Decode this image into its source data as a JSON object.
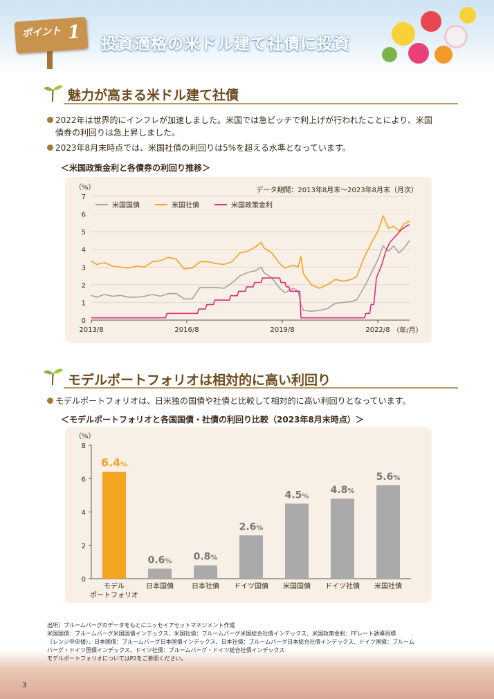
{
  "header": {
    "point_label": "ポイント",
    "point_number": "1",
    "title": "投資適格の米ドル建て社債に投資"
  },
  "section1": {
    "title": "魅力が高まる米ドル建て社債",
    "bullets": [
      "2022年は世界的にインフレが加速しました。米国では急ピッチで利上げが行われたことにより、米国",
      "債券の利回りは急上昇しました。",
      "2023年8月末時点では、米国社債の利回りは5%を超える水準となっています。"
    ],
    "chart_caption": "＜米国政策金利と各債券の利回り推移＞"
  },
  "section2": {
    "title": "モデルポートフォリオは相対的に高い利回り",
    "bullets": [
      "モデルポートフォリオは、日米独の国債や社債と比較して相対的に高い利回りとなっています。"
    ],
    "chart_caption": "＜モデルポートフォリオと各国国債・社債の利回り比較（2023年8月末時点）＞"
  },
  "footnote": [
    "出所）ブルームバーグのデータをもとにニッセイアセットマネジメント作成",
    "米国国債：ブルームバーグ米国国債インデックス、米国社債：ブルームバーグ米国総合社債インデックス、米国政策金利：FFレート誘導目標",
    "（レンジ中央値）、日本国債：ブルームバーグ日本国債インデックス、日本社債：ブルームバーグ日本総合社債インデックス、ドイツ国債：ブルーム",
    "バーグ・ドイツ国債インデックス、ドイツ社債：ブルームバーグ・ドイツ総合社債インデックス",
    "モデルポートフォリオについてはP2をご参照ください。"
  ],
  "page_number": "3",
  "chart_data": [
    {
      "type": "line",
      "unit_label": "（%）",
      "period_note": "データ期間：2013年8月末～2023年8月末（月次）",
      "x_tick_labels": [
        "2013/8",
        "2016/8",
        "2019/8",
        "2022/8"
      ],
      "x_unit": "（年/月）",
      "ylim": [
        0,
        7
      ],
      "y_ticks": [
        "0",
        "1",
        "2",
        "3",
        "4",
        "5",
        "6",
        "7"
      ],
      "grid": true,
      "legend_position": "top-left",
      "x_start": 2013.583,
      "x_end": 2023.583,
      "series": [
        {
          "name": "米国国債",
          "color": "#a3a3a3",
          "points": [
            [
              2013.58,
              1.4
            ],
            [
              2013.75,
              1.3
            ],
            [
              2014.0,
              1.45
            ],
            [
              2014.25,
              1.35
            ],
            [
              2014.5,
              1.4
            ],
            [
              2014.75,
              1.3
            ],
            [
              2015.0,
              1.3
            ],
            [
              2015.25,
              1.35
            ],
            [
              2015.5,
              1.45
            ],
            [
              2015.75,
              1.35
            ],
            [
              2016.0,
              1.5
            ],
            [
              2016.25,
              1.5
            ],
            [
              2016.5,
              1.2
            ],
            [
              2016.75,
              1.2
            ],
            [
              2017.0,
              1.85
            ],
            [
              2017.25,
              1.85
            ],
            [
              2017.5,
              1.85
            ],
            [
              2017.75,
              1.8
            ],
            [
              2018.0,
              2.1
            ],
            [
              2018.25,
              2.5
            ],
            [
              2018.5,
              2.7
            ],
            [
              2018.75,
              2.8
            ],
            [
              2018.92,
              3.0
            ],
            [
              2019.0,
              2.7
            ],
            [
              2019.25,
              2.4
            ],
            [
              2019.5,
              1.8
            ],
            [
              2019.67,
              1.55
            ],
            [
              2019.92,
              1.8
            ],
            [
              2020.08,
              1.65
            ],
            [
              2020.17,
              0.9
            ],
            [
              2020.25,
              0.55
            ],
            [
              2020.5,
              0.5
            ],
            [
              2020.75,
              0.55
            ],
            [
              2021.0,
              0.65
            ],
            [
              2021.25,
              0.95
            ],
            [
              2021.5,
              1.0
            ],
            [
              2021.75,
              1.05
            ],
            [
              2021.92,
              1.15
            ],
            [
              2022.17,
              1.9
            ],
            [
              2022.42,
              2.8
            ],
            [
              2022.58,
              3.4
            ],
            [
              2022.75,
              4.2
            ],
            [
              2022.92,
              3.9
            ],
            [
              2023.08,
              4.2
            ],
            [
              2023.25,
              3.8
            ],
            [
              2023.42,
              4.1
            ],
            [
              2023.58,
              4.5
            ]
          ]
        },
        {
          "name": "米国社債",
          "color": "#f2a51f",
          "points": [
            [
              2013.58,
              3.35
            ],
            [
              2013.75,
              3.15
            ],
            [
              2014.0,
              3.25
            ],
            [
              2014.25,
              3.05
            ],
            [
              2014.5,
              3.0
            ],
            [
              2014.75,
              2.95
            ],
            [
              2015.0,
              3.05
            ],
            [
              2015.25,
              3.0
            ],
            [
              2015.5,
              3.3
            ],
            [
              2015.75,
              3.35
            ],
            [
              2016.0,
              3.55
            ],
            [
              2016.25,
              3.45
            ],
            [
              2016.5,
              2.9
            ],
            [
              2016.75,
              2.95
            ],
            [
              2017.0,
              3.3
            ],
            [
              2017.25,
              3.3
            ],
            [
              2017.5,
              3.2
            ],
            [
              2017.75,
              3.15
            ],
            [
              2018.0,
              3.3
            ],
            [
              2018.25,
              3.8
            ],
            [
              2018.5,
              3.9
            ],
            [
              2018.75,
              4.15
            ],
            [
              2018.92,
              4.4
            ],
            [
              2019.0,
              4.1
            ],
            [
              2019.25,
              3.8
            ],
            [
              2019.5,
              3.2
            ],
            [
              2019.67,
              2.95
            ],
            [
              2019.92,
              3.1
            ],
            [
              2020.08,
              3.0
            ],
            [
              2020.17,
              3.6
            ],
            [
              2020.25,
              2.6
            ],
            [
              2020.5,
              2.0
            ],
            [
              2020.75,
              1.8
            ],
            [
              2021.0,
              2.0
            ],
            [
              2021.25,
              2.3
            ],
            [
              2021.5,
              2.2
            ],
            [
              2021.75,
              2.3
            ],
            [
              2021.92,
              2.45
            ],
            [
              2022.17,
              3.6
            ],
            [
              2022.42,
              4.5
            ],
            [
              2022.58,
              5.0
            ],
            [
              2022.75,
              5.9
            ],
            [
              2022.92,
              5.2
            ],
            [
              2023.08,
              5.3
            ],
            [
              2023.25,
              5.05
            ],
            [
              2023.42,
              5.45
            ],
            [
              2023.58,
              5.6
            ]
          ]
        },
        {
          "name": "米国政策金利",
          "color": "#d8317a",
          "points": [
            [
              2013.58,
              0.13
            ],
            [
              2015.92,
              0.13
            ],
            [
              2015.96,
              0.38
            ],
            [
              2016.92,
              0.38
            ],
            [
              2016.96,
              0.63
            ],
            [
              2017.17,
              0.63
            ],
            [
              2017.21,
              0.88
            ],
            [
              2017.42,
              0.88
            ],
            [
              2017.46,
              1.13
            ],
            [
              2017.92,
              1.13
            ],
            [
              2017.96,
              1.38
            ],
            [
              2018.17,
              1.38
            ],
            [
              2018.21,
              1.63
            ],
            [
              2018.42,
              1.63
            ],
            [
              2018.46,
              1.88
            ],
            [
              2018.67,
              1.88
            ],
            [
              2018.71,
              2.13
            ],
            [
              2018.92,
              2.13
            ],
            [
              2018.96,
              2.38
            ],
            [
              2019.5,
              2.38
            ],
            [
              2019.54,
              2.13
            ],
            [
              2019.67,
              2.13
            ],
            [
              2019.71,
              1.88
            ],
            [
              2019.79,
              1.88
            ],
            [
              2019.83,
              1.63
            ],
            [
              2020.13,
              1.63
            ],
            [
              2020.17,
              0.13
            ],
            [
              2022.17,
              0.13
            ],
            [
              2022.21,
              0.38
            ],
            [
              2022.33,
              0.38
            ],
            [
              2022.37,
              0.88
            ],
            [
              2022.46,
              0.88
            ],
            [
              2022.5,
              1.63
            ],
            [
              2022.54,
              2.38
            ],
            [
              2022.71,
              3.13
            ],
            [
              2022.83,
              3.88
            ],
            [
              2022.96,
              4.38
            ],
            [
              2023.08,
              4.63
            ],
            [
              2023.21,
              4.88
            ],
            [
              2023.33,
              5.13
            ],
            [
              2023.54,
              5.38
            ],
            [
              2023.58,
              5.38
            ]
          ]
        }
      ]
    },
    {
      "type": "bar",
      "unit_label": "（%）",
      "ylim": [
        0,
        8
      ],
      "y_ticks": [
        "0",
        "2",
        "4",
        "6",
        "8"
      ],
      "categories": [
        "モデル\nポートフォリオ",
        "日本国債",
        "日本社債",
        "ドイツ国債",
        "米国国債",
        "ドイツ社債",
        "米国社債"
      ],
      "values": [
        6.4,
        0.6,
        0.8,
        2.6,
        4.5,
        4.8,
        5.6
      ],
      "value_labels": [
        "6.4",
        "0.6",
        "0.8",
        "2.6",
        "4.5",
        "4.8",
        "5.6"
      ],
      "value_unit": "%",
      "colors": [
        "#f2a51f",
        "#aaaaaa",
        "#aaaaaa",
        "#aaaaaa",
        "#aaaaaa",
        "#aaaaaa",
        "#aaaaaa"
      ]
    }
  ]
}
